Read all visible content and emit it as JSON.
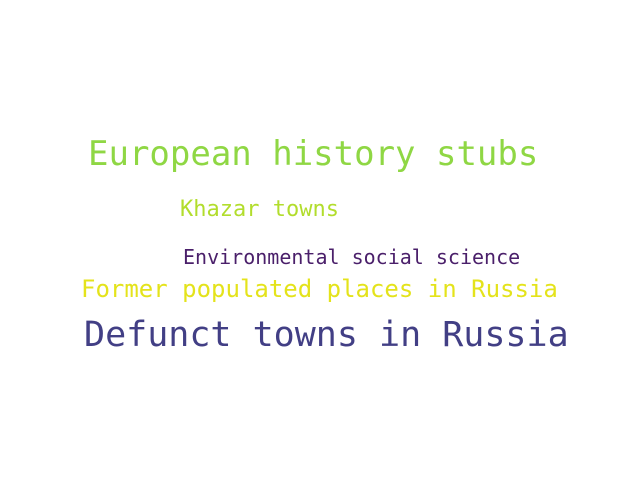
{
  "word_cloud": {
    "words": [
      {
        "text": "European history stubs",
        "color": "#8fd744"
      },
      {
        "text": "Khazar towns",
        "color": "#b2dd2d"
      },
      {
        "text": "Environmental social science",
        "color": "#4a1f6a"
      },
      {
        "text": "Former populated places in Russia",
        "color": "#e4e31b"
      },
      {
        "text": "Defunct towns in Russia",
        "color": "#423f85"
      }
    ]
  }
}
